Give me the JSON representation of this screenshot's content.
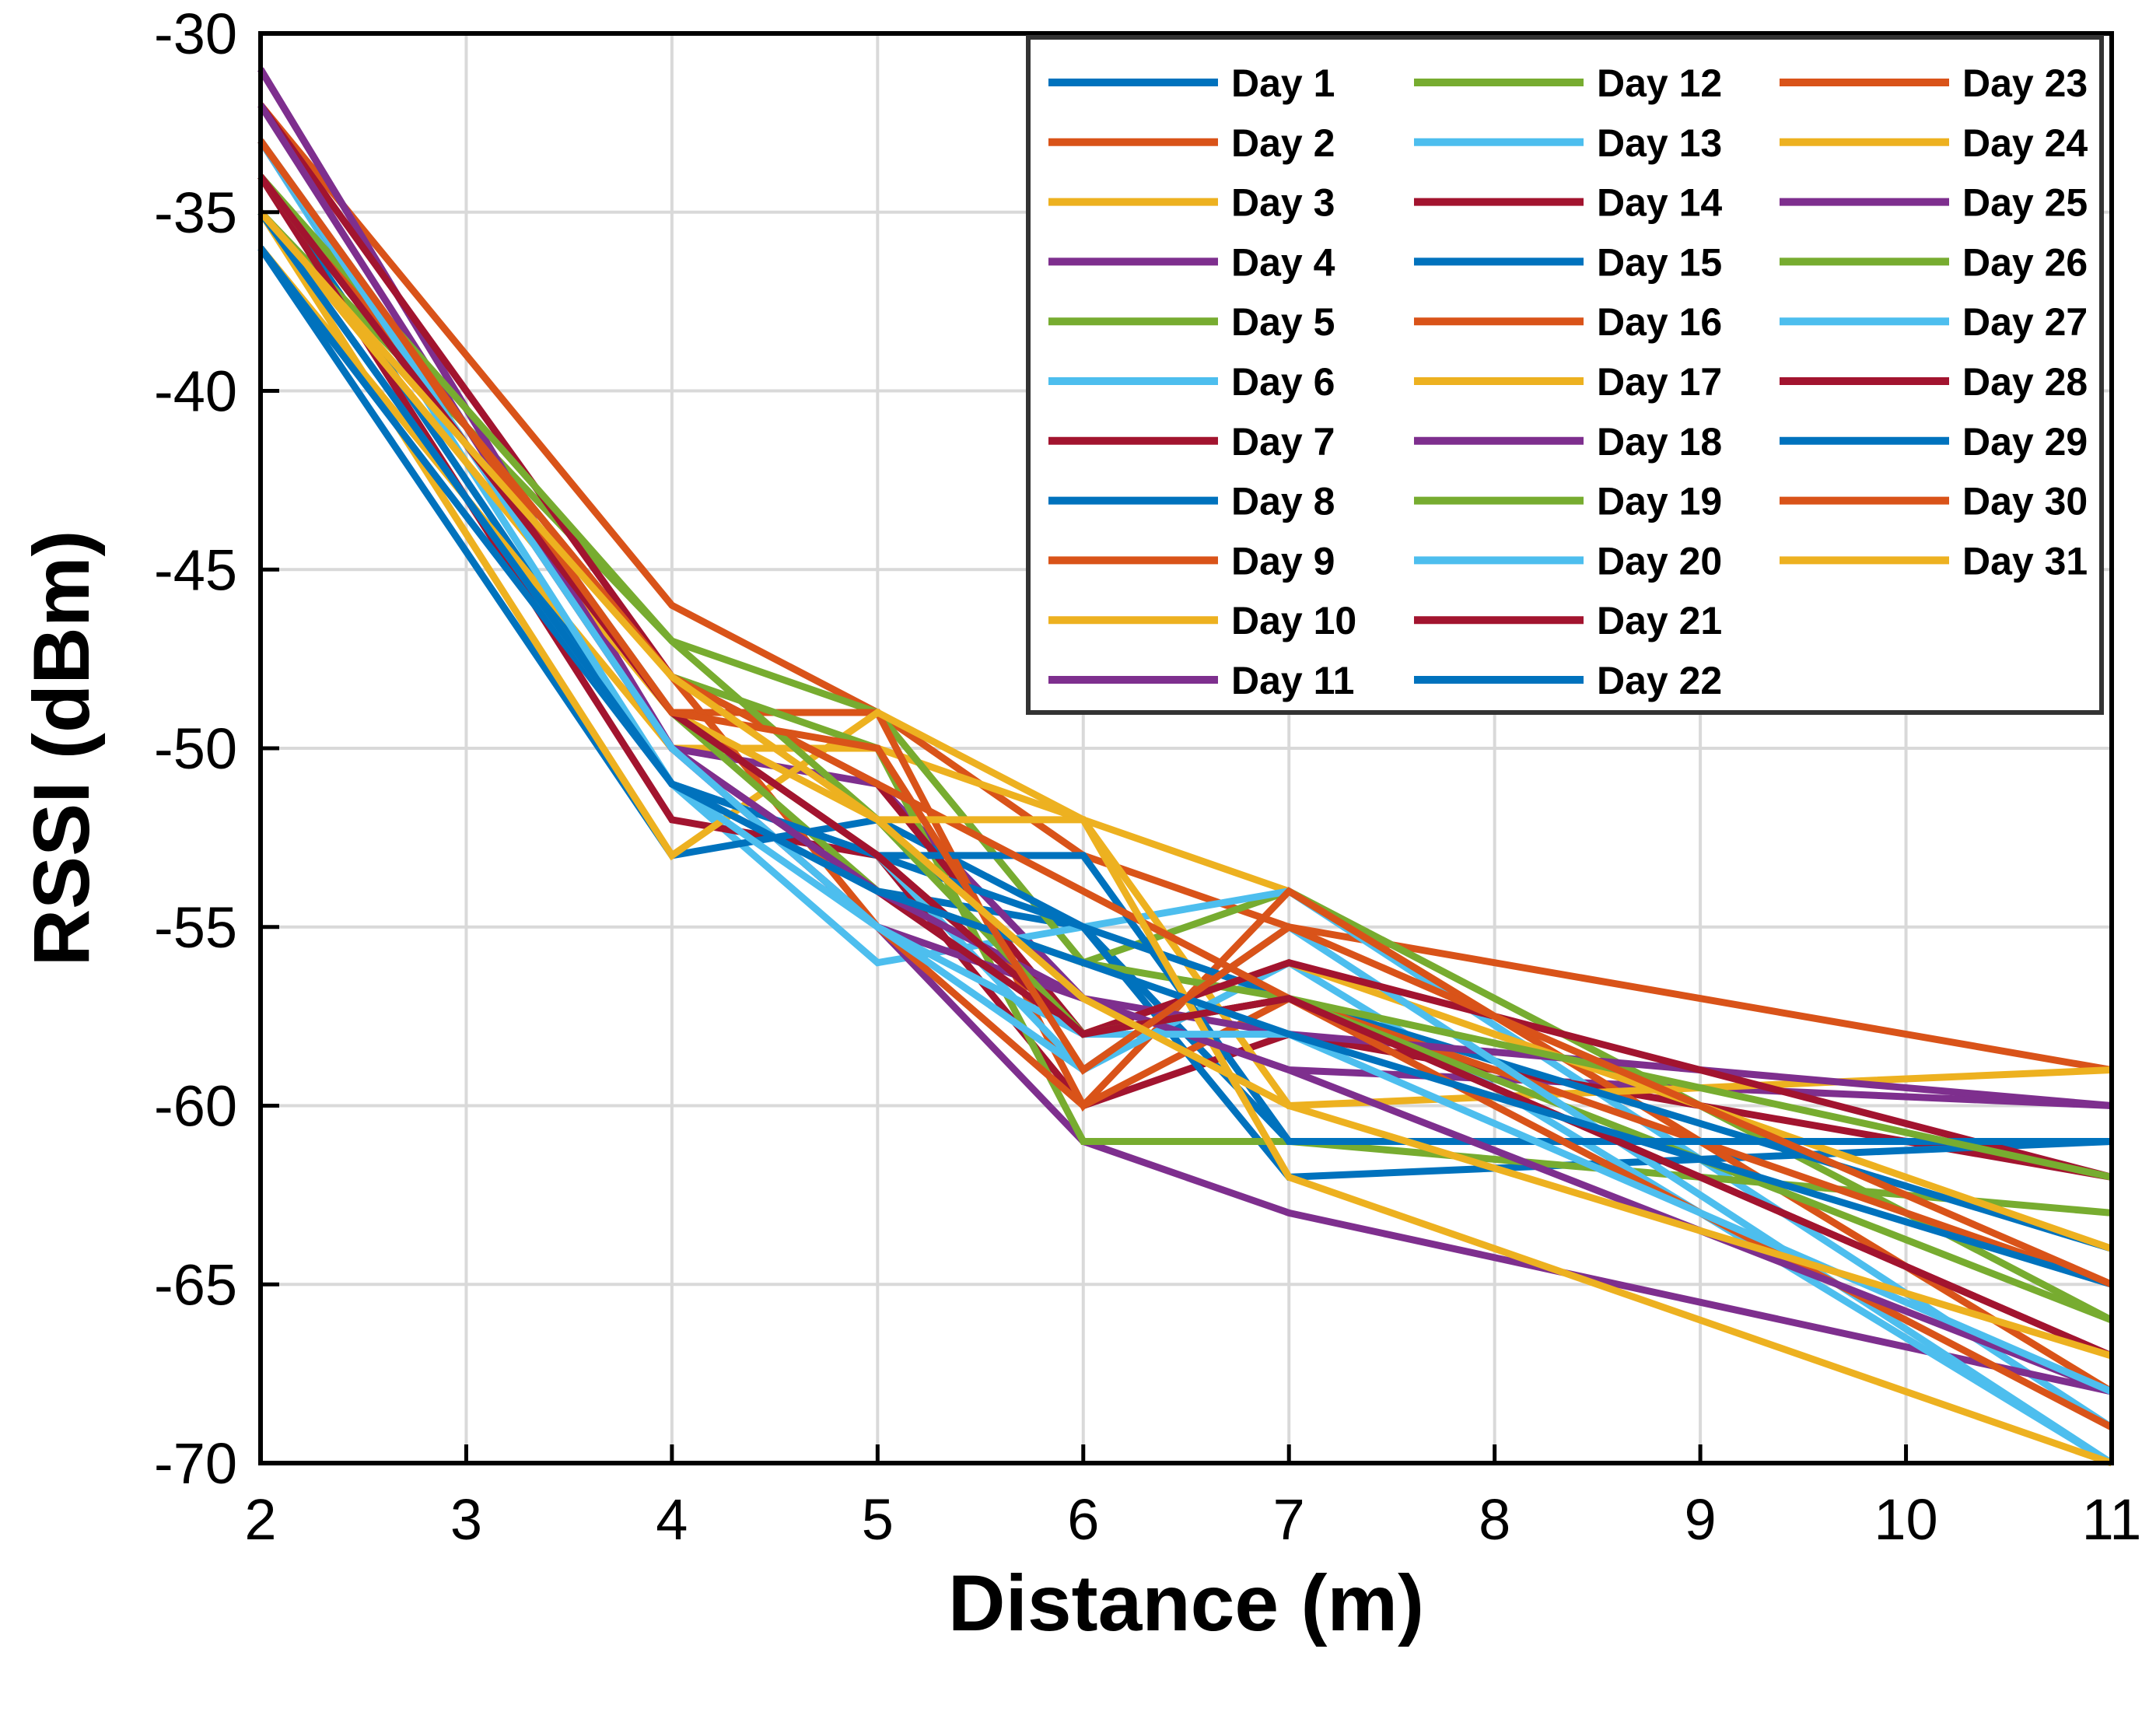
{
  "chart_data": {
    "type": "line",
    "title": "",
    "xlabel": "Distance (m)",
    "ylabel": "RSSI (dBm)",
    "xlim": [
      2,
      11
    ],
    "ylim": [
      -70,
      -30
    ],
    "xticks": [
      "2",
      "3",
      "4",
      "5",
      "6",
      "7",
      "8",
      "9",
      "10",
      "11"
    ],
    "yticks": [
      "-30",
      "-35",
      "-40",
      "-45",
      "-50",
      "-55",
      "-60",
      "-65",
      "-70"
    ],
    "grid": true,
    "legend_position": "top-right",
    "x": [
      2,
      4,
      5,
      6,
      7,
      11
    ],
    "colors": [
      "#0072BD",
      "#D95319",
      "#EDB120",
      "#7E2F8E",
      "#77AC30",
      "#4DBEEE",
      "#A2142F"
    ],
    "series": [
      {
        "name": "Day 1",
        "values": [
          -34,
          -51,
          -54,
          -55,
          -61,
          -61
        ]
      },
      {
        "name": "Day 2",
        "values": [
          -32,
          -46,
          -49,
          -53,
          -55,
          -59
        ]
      },
      {
        "name": "Day 3",
        "values": [
          -36,
          -50,
          -50,
          -52,
          -54,
          -68
        ]
      },
      {
        "name": "Day 4",
        "values": [
          -31,
          -50,
          -51,
          -57,
          -59,
          -60
        ]
      },
      {
        "name": "Day 5",
        "values": [
          -35,
          -47,
          -49,
          -56,
          -54,
          -66
        ]
      },
      {
        "name": "Day 6",
        "values": [
          -33,
          -51,
          -56,
          -55,
          -54,
          -69
        ]
      },
      {
        "name": "Day 7",
        "values": [
          -34,
          -52,
          -53,
          -60,
          -58,
          -62
        ]
      },
      {
        "name": "Day 8",
        "values": [
          -36,
          -53,
          -52,
          -55,
          -62,
          -61
        ]
      },
      {
        "name": "Day 9",
        "values": [
          -33,
          -49,
          -49,
          -60,
          -54,
          -68
        ]
      },
      {
        "name": "Day 10",
        "values": [
          -35,
          -53,
          -49,
          -52,
          -60,
          -59
        ]
      },
      {
        "name": "Day 11",
        "values": [
          -31,
          -50,
          -55,
          -61,
          -63,
          -68
        ]
      },
      {
        "name": "Day 12",
        "values": [
          -34,
          -48,
          -50,
          -61,
          -61,
          -63
        ]
      },
      {
        "name": "Day 13",
        "values": [
          -33,
          -49,
          -53,
          -59,
          -56,
          -70
        ]
      },
      {
        "name": "Day 14",
        "values": [
          -32,
          -48,
          -51,
          -58,
          -57,
          -67
        ]
      },
      {
        "name": "Day 15",
        "values": [
          -36,
          -51,
          -53,
          -55,
          -57,
          -64
        ]
      },
      {
        "name": "Day 16",
        "values": [
          -34,
          -48,
          -55,
          -60,
          -57,
          -65
        ]
      },
      {
        "name": "Day 17",
        "values": [
          -35,
          -49,
          -53,
          -58,
          -56,
          -64
        ]
      },
      {
        "name": "Day 18",
        "values": [
          -33,
          -50,
          -55,
          -57,
          -58,
          -60
        ]
      },
      {
        "name": "Day 19",
        "values": [
          -34,
          -49,
          -54,
          -56,
          -57,
          -66
        ]
      },
      {
        "name": "Day 20",
        "values": [
          -35,
          -51,
          -55,
          -59,
          -55,
          -70
        ]
      },
      {
        "name": "Day 21",
        "values": [
          -33,
          -50,
          -54,
          -58,
          -56,
          -62
        ]
      },
      {
        "name": "Day 22",
        "values": [
          -35,
          -51,
          -53,
          -53,
          -61,
          -61
        ]
      },
      {
        "name": "Day 23",
        "values": [
          -34,
          -48,
          -51,
          -54,
          -57,
          -69
        ]
      },
      {
        "name": "Day 24",
        "values": [
          -35,
          -49,
          -52,
          -52,
          -62,
          -70
        ]
      },
      {
        "name": "Day 25",
        "values": [
          -32,
          -50,
          -54,
          -57,
          -59,
          -68
        ]
      },
      {
        "name": "Day 26",
        "values": [
          -34,
          -47,
          -52,
          -58,
          -57,
          -62
        ]
      },
      {
        "name": "Day 27",
        "values": [
          -33,
          -50,
          -55,
          -58,
          -58,
          -68
        ]
      },
      {
        "name": "Day 28",
        "values": [
          -34,
          -49,
          -53,
          -58,
          -57,
          -67
        ]
      },
      {
        "name": "Day 29",
        "values": [
          -35,
          -51,
          -54,
          -56,
          -58,
          -65
        ]
      },
      {
        "name": "Day 30",
        "values": [
          -33,
          -49,
          -50,
          -59,
          -55,
          -65
        ]
      },
      {
        "name": "Day 31",
        "values": [
          -35,
          -48,
          -52,
          -57,
          -60,
          -67
        ]
      }
    ]
  }
}
